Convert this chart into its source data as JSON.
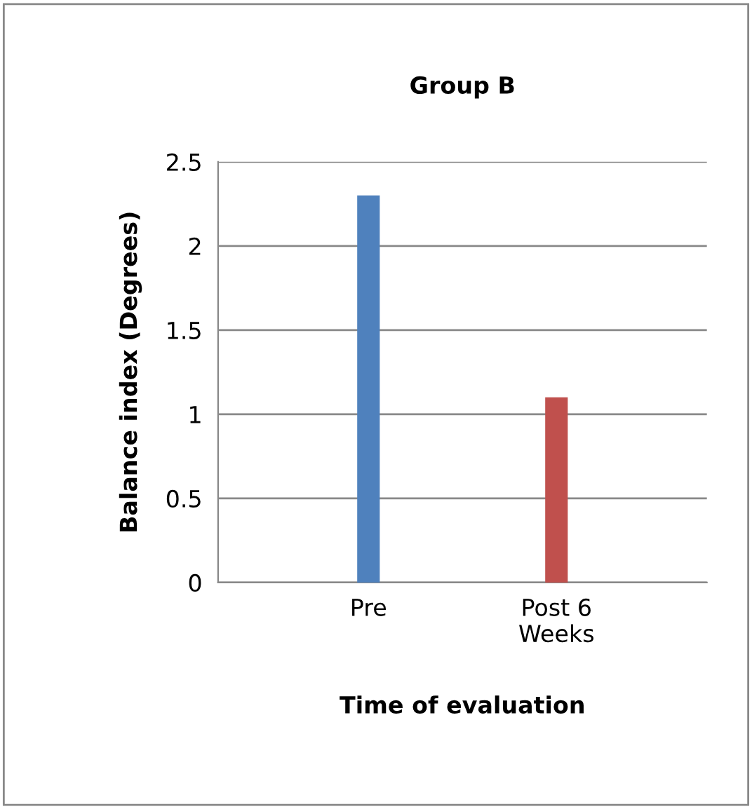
{
  "chart_data": {
    "type": "bar",
    "title": "Group B",
    "xlabel": "Time of evaluation",
    "ylabel": "Balance index (Degrees)",
    "categories": [
      "Pre",
      "Post 6\nWeeks"
    ],
    "values": [
      2.3,
      1.1
    ],
    "colors": [
      "#4f81bd",
      "#c0504d"
    ],
    "ylim": [
      0,
      2.5
    ],
    "yticks": [
      0,
      0.5,
      1,
      1.5,
      2,
      2.5
    ],
    "grid": "y"
  }
}
